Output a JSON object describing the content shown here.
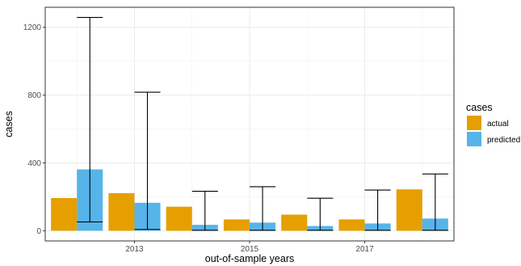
{
  "chart_data": {
    "type": "bar",
    "xlabel": "out-of-sample years",
    "ylabel": "cases",
    "ylim": [
      0,
      1200
    ],
    "yticks": [
      0,
      400,
      800,
      1200
    ],
    "x": [
      2012,
      2013,
      2014,
      2015,
      2016,
      2017,
      2018
    ],
    "xticks": [
      2013,
      2015,
      2017
    ],
    "xlim": [
      2011.45,
      2018.55
    ],
    "grid": true,
    "legend": {
      "title": "cases",
      "position": "right",
      "entries": [
        {
          "label": "actual",
          "color": "#E69F00"
        },
        {
          "label": "predicted",
          "color": "#56B4E9"
        }
      ]
    },
    "series": [
      {
        "name": "actual",
        "color": "#E69F00",
        "values": [
          193,
          222,
          142,
          67,
          95,
          67,
          244
        ]
      },
      {
        "name": "predicted",
        "color": "#56B4E9",
        "values": [
          362,
          165,
          35,
          48,
          28,
          43,
          72
        ],
        "error_low": [
          52,
          8,
          3,
          3,
          3,
          3,
          3
        ],
        "error_high": [
          1258,
          817,
          233,
          260,
          192,
          240,
          335
        ]
      }
    ]
  }
}
